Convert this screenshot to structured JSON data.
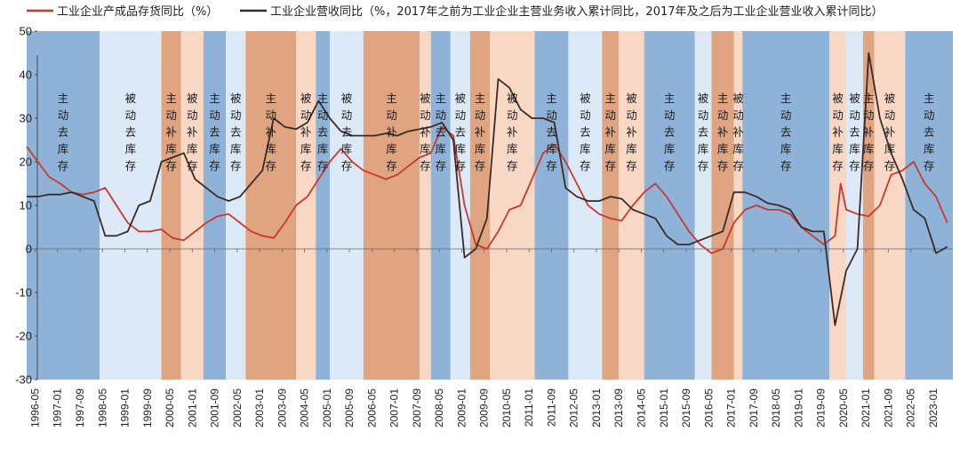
{
  "chart_data": {
    "type": "line",
    "title": "",
    "xlabel": "",
    "ylabel": "",
    "ylim": [
      -30,
      50
    ],
    "yticks": [
      -30,
      -20,
      -10,
      0,
      10,
      20,
      30,
      40,
      50
    ],
    "xlim": [
      "1996-02",
      "2023-08"
    ],
    "xticks": [
      "1996-05",
      "1997-01",
      "1997-09",
      "1998-05",
      "1999-01",
      "1999-09",
      "2000-05",
      "2001-01",
      "2001-09",
      "2002-05",
      "2003-01",
      "2003-09",
      "2004-05",
      "2005-01",
      "2005-09",
      "2006-05",
      "2007-01",
      "2007-09",
      "2008-05",
      "2009-01",
      "2009-09",
      "2010-05",
      "2011-01",
      "2011-09",
      "2012-05",
      "2013-01",
      "2013-09",
      "2014-05",
      "2015-01",
      "2015-09",
      "2016-05",
      "2017-01",
      "2017-09",
      "2018-05",
      "2019-01",
      "2019-09",
      "2020-05",
      "2021-01",
      "2021-09",
      "2022-05",
      "2023-01"
    ],
    "grid": false,
    "legend": "top-left",
    "series": [
      {
        "name": "工业企业产成品存货同比（%）",
        "color": "#c8382f",
        "points": [
          [
            "1996-02",
            23.5
          ],
          [
            "1996-06",
            20
          ],
          [
            "1996-10",
            16.5
          ],
          [
            "1997-02",
            15
          ],
          [
            "1997-06",
            13
          ],
          [
            "1997-10",
            12.5
          ],
          [
            "1998-02",
            13
          ],
          [
            "1998-06",
            14
          ],
          [
            "1998-10",
            10
          ],
          [
            "1999-02",
            6
          ],
          [
            "1999-06",
            4
          ],
          [
            "1999-10",
            4
          ],
          [
            "2000-02",
            4.5
          ],
          [
            "2000-06",
            2.5
          ],
          [
            "2000-10",
            2
          ],
          [
            "2001-02",
            4
          ],
          [
            "2001-06",
            6
          ],
          [
            "2001-10",
            7.5
          ],
          [
            "2002-02",
            8
          ],
          [
            "2002-06",
            6
          ],
          [
            "2002-10",
            4
          ],
          [
            "2003-02",
            3
          ],
          [
            "2003-06",
            2.5
          ],
          [
            "2003-10",
            6
          ],
          [
            "2004-02",
            10
          ],
          [
            "2004-06",
            12
          ],
          [
            "2004-10",
            16
          ],
          [
            "2005-02",
            20
          ],
          [
            "2005-06",
            23
          ],
          [
            "2005-10",
            20
          ],
          [
            "2006-02",
            18
          ],
          [
            "2006-06",
            17
          ],
          [
            "2006-10",
            16
          ],
          [
            "2007-02",
            17
          ],
          [
            "2007-06",
            19
          ],
          [
            "2007-10",
            21
          ],
          [
            "2008-02",
            22
          ],
          [
            "2008-06",
            28
          ],
          [
            "2008-10",
            26
          ],
          [
            "2009-02",
            10
          ],
          [
            "2009-06",
            1
          ],
          [
            "2009-10",
            0
          ],
          [
            "2010-02",
            4
          ],
          [
            "2010-06",
            9
          ],
          [
            "2010-10",
            10
          ],
          [
            "2011-02",
            16
          ],
          [
            "2011-06",
            22
          ],
          [
            "2011-10",
            24
          ],
          [
            "2012-02",
            20
          ],
          [
            "2012-06",
            15
          ],
          [
            "2012-10",
            10
          ],
          [
            "2013-02",
            8
          ],
          [
            "2013-06",
            7
          ],
          [
            "2013-10",
            6.5
          ],
          [
            "2014-02",
            10
          ],
          [
            "2014-06",
            13
          ],
          [
            "2014-10",
            15
          ],
          [
            "2015-02",
            12
          ],
          [
            "2015-06",
            8
          ],
          [
            "2015-10",
            4
          ],
          [
            "2016-02",
            1
          ],
          [
            "2016-06",
            -1
          ],
          [
            "2016-10",
            0
          ],
          [
            "2017-02",
            6
          ],
          [
            "2017-06",
            9
          ],
          [
            "2017-10",
            10
          ],
          [
            "2018-02",
            9
          ],
          [
            "2018-06",
            9
          ],
          [
            "2018-10",
            8
          ],
          [
            "2019-02",
            5
          ],
          [
            "2019-06",
            3
          ],
          [
            "2019-10",
            1
          ],
          [
            "2020-02",
            3
          ],
          [
            "2020-04",
            15
          ],
          [
            "2020-06",
            9
          ],
          [
            "2020-10",
            8
          ],
          [
            "2021-02",
            7.5
          ],
          [
            "2021-06",
            10
          ],
          [
            "2021-10",
            17
          ],
          [
            "2022-02",
            18
          ],
          [
            "2022-06",
            20
          ],
          [
            "2022-10",
            15
          ],
          [
            "2023-02",
            12
          ],
          [
            "2023-06",
            6
          ]
        ]
      },
      {
        "name": "工业企业营收同比（%，2017年之前为工业企业主营业务收入累计同比，2017年及之后为工业企业营业收入累计同比）",
        "color": "#3a2b26",
        "points": [
          [
            "1996-02",
            12
          ],
          [
            "1996-06",
            12
          ],
          [
            "1996-10",
            12.5
          ],
          [
            "1997-02",
            12.5
          ],
          [
            "1997-06",
            13
          ],
          [
            "1997-10",
            12
          ],
          [
            "1998-02",
            11
          ],
          [
            "1998-06",
            3
          ],
          [
            "1998-10",
            3
          ],
          [
            "1999-02",
            4
          ],
          [
            "1999-06",
            10
          ],
          [
            "1999-10",
            11
          ],
          [
            "2000-02",
            20
          ],
          [
            "2000-06",
            21
          ],
          [
            "2000-10",
            22
          ],
          [
            "2001-02",
            16
          ],
          [
            "2001-06",
            14
          ],
          [
            "2001-10",
            12
          ],
          [
            "2002-02",
            11
          ],
          [
            "2002-06",
            12
          ],
          [
            "2002-10",
            15
          ],
          [
            "2003-02",
            18
          ],
          [
            "2003-06",
            30
          ],
          [
            "2003-10",
            28
          ],
          [
            "2004-02",
            27.5
          ],
          [
            "2004-06",
            29
          ],
          [
            "2004-10",
            34
          ],
          [
            "2005-02",
            30
          ],
          [
            "2005-06",
            27
          ],
          [
            "2005-10",
            26
          ],
          [
            "2006-02",
            26
          ],
          [
            "2006-06",
            26
          ],
          [
            "2006-10",
            26.5
          ],
          [
            "2007-02",
            26
          ],
          [
            "2007-06",
            27
          ],
          [
            "2007-10",
            27.5
          ],
          [
            "2008-02",
            28
          ],
          [
            "2008-06",
            29
          ],
          [
            "2008-10",
            25
          ],
          [
            "2009-02",
            -2
          ],
          [
            "2009-06",
            0
          ],
          [
            "2009-10",
            7
          ],
          [
            "2010-02",
            39
          ],
          [
            "2010-06",
            37
          ],
          [
            "2010-10",
            32
          ],
          [
            "2011-02",
            30
          ],
          [
            "2011-06",
            30
          ],
          [
            "2011-10",
            29
          ],
          [
            "2012-02",
            14
          ],
          [
            "2012-06",
            12
          ],
          [
            "2012-10",
            11
          ],
          [
            "2013-02",
            11
          ],
          [
            "2013-06",
            12
          ],
          [
            "2013-10",
            11.5
          ],
          [
            "2014-02",
            9
          ],
          [
            "2014-06",
            8
          ],
          [
            "2014-10",
            7
          ],
          [
            "2015-02",
            3
          ],
          [
            "2015-06",
            1
          ],
          [
            "2015-10",
            1
          ],
          [
            "2016-02",
            2
          ],
          [
            "2016-06",
            3
          ],
          [
            "2016-10",
            4
          ],
          [
            "2017-02",
            13
          ],
          [
            "2017-06",
            13
          ],
          [
            "2017-10",
            12
          ],
          [
            "2018-02",
            10.5
          ],
          [
            "2018-06",
            10
          ],
          [
            "2018-10",
            9
          ],
          [
            "2019-02",
            5
          ],
          [
            "2019-06",
            4
          ],
          [
            "2019-10",
            4
          ],
          [
            "2020-02",
            -17.5
          ],
          [
            "2020-06",
            -5
          ],
          [
            "2020-10",
            0
          ],
          [
            "2021-02",
            45
          ],
          [
            "2021-06",
            30
          ],
          [
            "2021-10",
            22
          ],
          [
            "2022-02",
            16
          ],
          [
            "2022-06",
            9
          ],
          [
            "2022-10",
            7
          ],
          [
            "2023-02",
            -1
          ],
          [
            "2023-06",
            0.5
          ]
        ]
      }
    ],
    "phases": [
      {
        "start": "1996-02",
        "end": "1998-04",
        "type": "主动去库存",
        "label": "主动去库存",
        "fill": "#8fb3d8"
      },
      {
        "start": "1998-04",
        "end": "2000-02",
        "type": "被动去库存",
        "label": "被动去库存",
        "fill": "#dce9f6"
      },
      {
        "start": "2000-02",
        "end": "2000-09",
        "type": "主动补库存",
        "label": "主动补库存",
        "fill": "#e0a480"
      },
      {
        "start": "2000-09",
        "end": "2001-05",
        "type": "被动补库存",
        "label": "被动补库存",
        "fill": "#f8d8c4"
      },
      {
        "start": "2001-05",
        "end": "2002-01",
        "type": "主动去库存",
        "label": "主动去库存",
        "fill": "#8fb3d8"
      },
      {
        "start": "2002-01",
        "end": "2002-08",
        "type": "被动去库存",
        "label": "被动去库存",
        "fill": "#dce9f6"
      },
      {
        "start": "2002-08",
        "end": "2004-02",
        "type": "主动补库存",
        "label": "主动补库存",
        "fill": "#e0a480"
      },
      {
        "start": "2004-02",
        "end": "2004-09",
        "type": "被动补库存",
        "label": "被动补库存",
        "fill": "#f8d8c4"
      },
      {
        "start": "2004-09",
        "end": "2005-02",
        "type": "主动去库存",
        "label": "主动去库存",
        "fill": "#8fb3d8"
      },
      {
        "start": "2005-02",
        "end": "2006-02",
        "type": "被动去库存",
        "label": "被动去库存",
        "fill": "#dce9f6"
      },
      {
        "start": "2006-02",
        "end": "2007-10",
        "type": "主动补库存",
        "label": "主动补库存",
        "fill": "#e0a480"
      },
      {
        "start": "2007-10",
        "end": "2008-02",
        "type": "被动补库存",
        "label": "被动补库存",
        "fill": "#f8d8c4"
      },
      {
        "start": "2008-02",
        "end": "2008-09",
        "type": "主动去库存",
        "label": "主动去库存",
        "fill": "#8fb3d8"
      },
      {
        "start": "2008-09",
        "end": "2009-04",
        "type": "被动去库存",
        "label": "被动去库存",
        "fill": "#dce9f6"
      },
      {
        "start": "2009-04",
        "end": "2009-11",
        "type": "主动补库存",
        "label": "主动补库存",
        "fill": "#e0a480"
      },
      {
        "start": "2009-11",
        "end": "2011-03",
        "type": "被动补库存",
        "label": "被动补库存",
        "fill": "#f8d8c4"
      },
      {
        "start": "2011-03",
        "end": "2012-03",
        "type": "主动去库存",
        "label": "主动去库存",
        "fill": "#8fb3d8"
      },
      {
        "start": "2012-03",
        "end": "2013-03",
        "type": "被动去库存",
        "label": "被动去库存",
        "fill": "#dce9f6"
      },
      {
        "start": "2013-03",
        "end": "2013-09",
        "type": "主动补库存",
        "label": "主动补库存",
        "fill": "#e0a480"
      },
      {
        "start": "2013-09",
        "end": "2014-06",
        "type": "被动补库存",
        "label": "被动补库存",
        "fill": "#f8d8c4"
      },
      {
        "start": "2014-06",
        "end": "2015-12",
        "type": "主动去库存",
        "label": "主动去库存",
        "fill": "#8fb3d8"
      },
      {
        "start": "2015-12",
        "end": "2016-06",
        "type": "被动去库存",
        "label": "被动去库存",
        "fill": "#dce9f6"
      },
      {
        "start": "2016-06",
        "end": "2017-02",
        "type": "主动补库存",
        "label": "主动补库存",
        "fill": "#e0a480"
      },
      {
        "start": "2017-02",
        "end": "2017-05",
        "type": "被动补库存",
        "label": "被动补库存",
        "fill": "#f8d8c4"
      },
      {
        "start": "2017-05",
        "end": "2019-12",
        "type": "主动去库存",
        "label": "主动去库存",
        "fill": "#8fb3d8"
      },
      {
        "start": "2019-12",
        "end": "2020-06",
        "type": "被动补库存",
        "label": "被动补库存",
        "fill": "#f8d8c4"
      },
      {
        "start": "2020-06",
        "end": "2020-12",
        "type": "被动去库存",
        "label": "被动去库存",
        "fill": "#dce9f6"
      },
      {
        "start": "2020-12",
        "end": "2021-04",
        "type": "主动补库存",
        "label": "主动补库存",
        "fill": "#e0a480"
      },
      {
        "start": "2021-04",
        "end": "2022-03",
        "type": "被动补库存",
        "label": "被动补库存",
        "fill": "#f8d8c4"
      },
      {
        "start": "2022-03",
        "end": "2023-08",
        "type": "主动去库存",
        "label": "主动去库存",
        "fill": "#8fb3d8"
      }
    ]
  }
}
